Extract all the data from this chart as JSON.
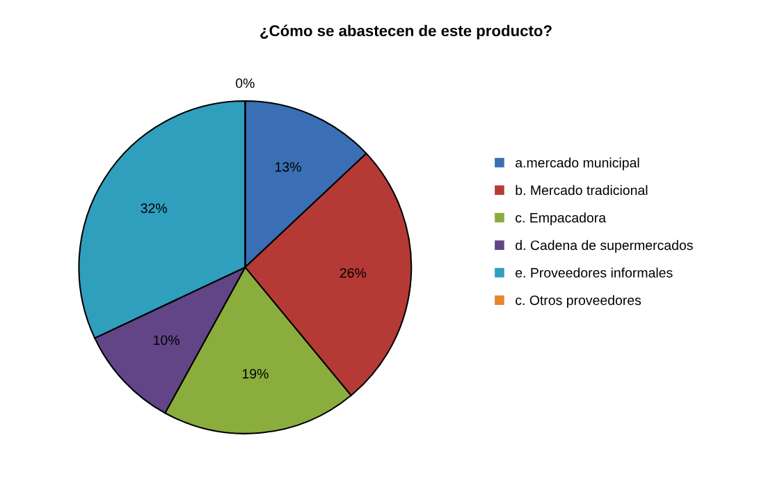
{
  "chart_data": {
    "type": "pie",
    "title": "¿Cómo se abastecen de este producto?",
    "categories": [
      "a.mercado municipal",
      "b. Mercado tradicional",
      "c. Empacadora",
      "d. Cadena de supermercados",
      "e. Proveedores informales",
      "c. Otros proveedores"
    ],
    "values": [
      13,
      26,
      19,
      10,
      32,
      0
    ],
    "colors": [
      "#3a6fb5",
      "#b53a35",
      "#8aad3e",
      "#614586",
      "#2f9fbd",
      "#e6862d"
    ],
    "value_labels": [
      "13%",
      "26%",
      "19%",
      "10%",
      "32%",
      "0%"
    ],
    "legend": "right"
  }
}
